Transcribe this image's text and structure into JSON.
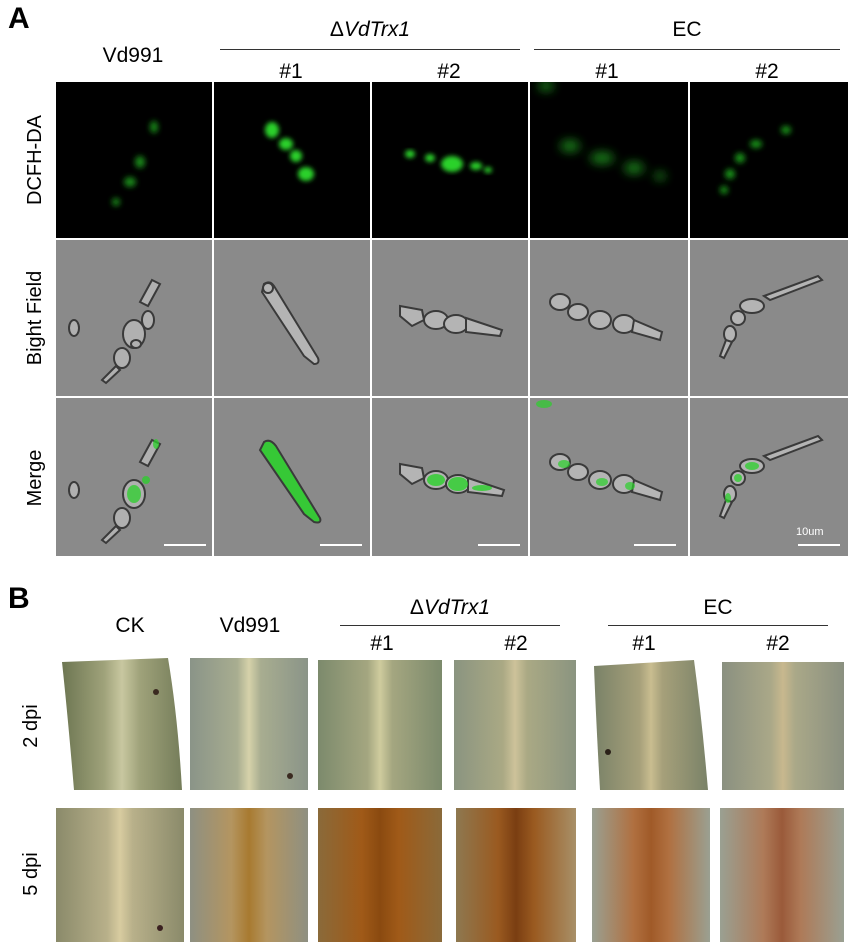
{
  "panels": {
    "a": {
      "letter": "A",
      "columns": [
        "Vd991",
        "#1",
        "#2",
        "#1",
        "#2"
      ],
      "groups": [
        {
          "symbol": "Δ",
          "name": "VdTrx1"
        },
        {
          "name": "EC"
        }
      ],
      "rows": [
        "DCFH-DA",
        "Bight Field",
        "Merge"
      ],
      "scale_label": "10um"
    },
    "b": {
      "letter": "B",
      "columns": [
        "CK",
        "Vd991",
        "#1",
        "#2",
        "#1",
        "#2"
      ],
      "groups": [
        {
          "symbol": "Δ",
          "name": "VdTrx1"
        },
        {
          "name": "EC"
        }
      ],
      "rows": [
        "2 dpi",
        "5 dpi"
      ]
    }
  },
  "colors": {
    "fluorescence": "#2bd12b",
    "dark_background": "#000000",
    "brightfield_background": "#8a8a8a",
    "scale_bar": "#ffffff"
  }
}
